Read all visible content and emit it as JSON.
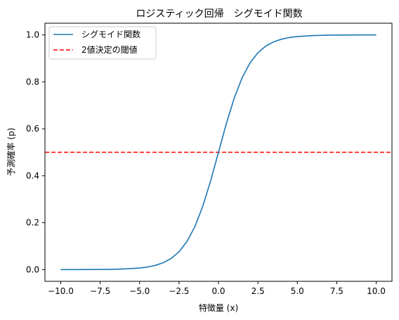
{
  "chart_data": {
    "type": "line",
    "title": "ロジスティック回帰　シグモイド関数",
    "xlabel": "特徴量 (x)",
    "ylabel": "予測確率 (p)",
    "xlim": [
      -11.0,
      11.0
    ],
    "ylim": [
      -0.05,
      1.05
    ],
    "x_ticks": [
      -10.0,
      -7.5,
      -5.0,
      -2.5,
      0.0,
      2.5,
      5.0,
      7.5,
      10.0
    ],
    "x_tick_labels": [
      "−10.0",
      "−7.5",
      "−5.0",
      "−2.5",
      "0.0",
      "2.5",
      "5.0",
      "7.5",
      "10.0"
    ],
    "y_ticks": [
      0.0,
      0.2,
      0.4,
      0.6,
      0.8,
      1.0
    ],
    "y_tick_labels": [
      "0.0",
      "0.2",
      "0.4",
      "0.6",
      "0.8",
      "1.0"
    ],
    "grid": false,
    "legend_position": "top-left",
    "series": [
      {
        "name": "シグモイド関数",
        "kind": "line",
        "style": "solid",
        "color": "#1f77b4",
        "x": [
          -10,
          -9,
          -8,
          -7,
          -6,
          -5,
          -4.5,
          -4,
          -3.5,
          -3,
          -2.5,
          -2,
          -1.5,
          -1,
          -0.5,
          0,
          0.5,
          1,
          1.5,
          2,
          2.5,
          3,
          3.5,
          4,
          4.5,
          5,
          6,
          7,
          8,
          9,
          10
        ],
        "y": [
          0.0,
          0.0001,
          0.0003,
          0.0009,
          0.0025,
          0.0067,
          0.011,
          0.018,
          0.0293,
          0.0474,
          0.0759,
          0.1192,
          0.1824,
          0.2689,
          0.3775,
          0.5,
          0.6225,
          0.7311,
          0.8176,
          0.8808,
          0.9241,
          0.9526,
          0.9707,
          0.982,
          0.989,
          0.9933,
          0.9975,
          0.9991,
          0.9997,
          0.9999,
          1.0
        ]
      },
      {
        "name": "2値決定の閾値",
        "kind": "hline",
        "style": "dashed",
        "color": "#ff0000",
        "y": 0.5
      }
    ]
  }
}
